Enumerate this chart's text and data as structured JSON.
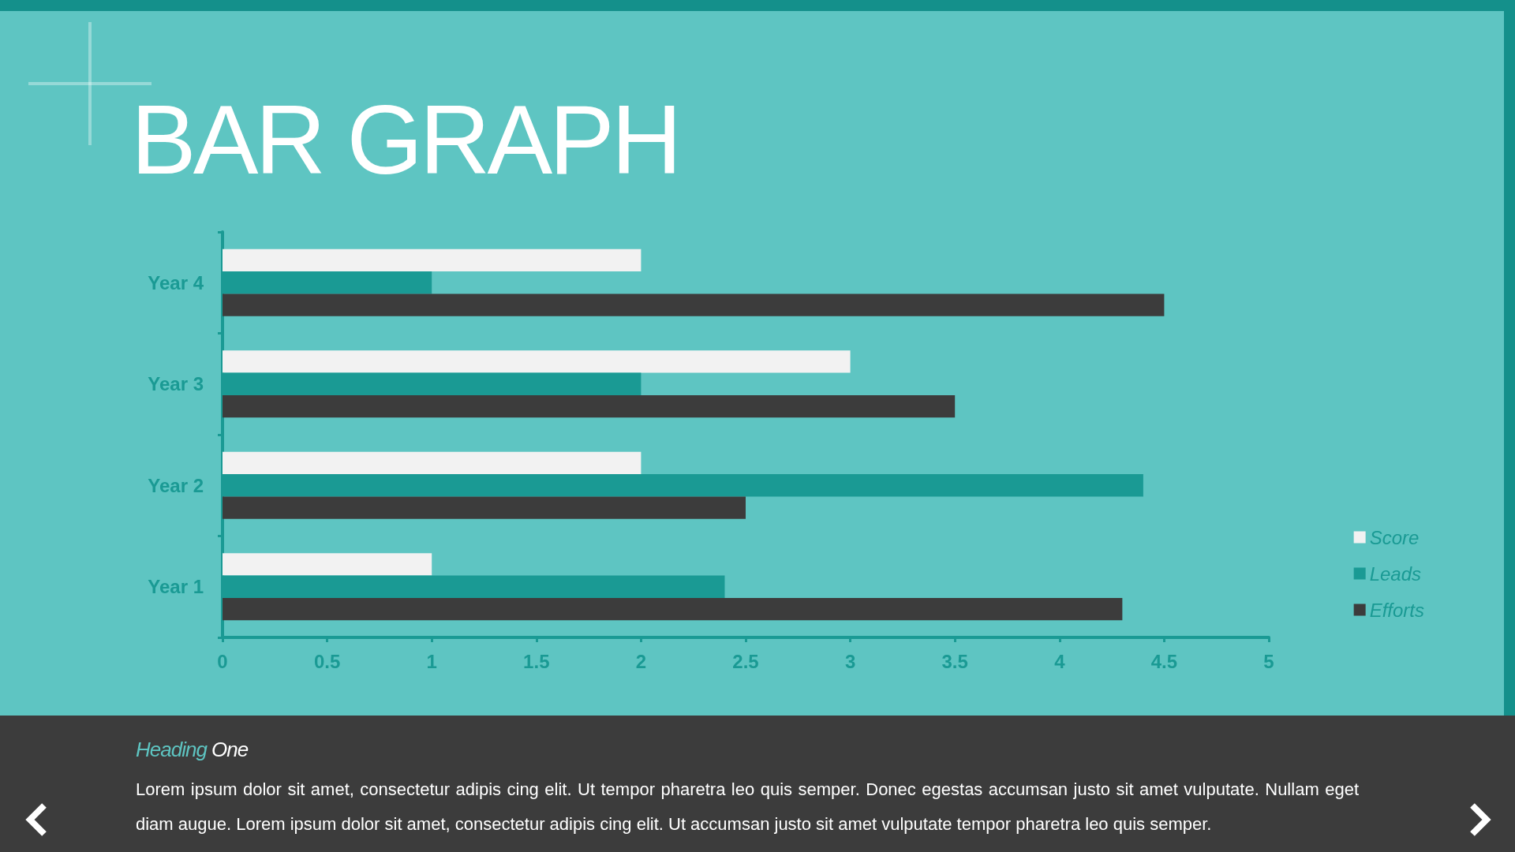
{
  "chart_data": {
    "type": "bar",
    "orientation": "horizontal",
    "title": "BAR GRAPH",
    "categories": [
      "Year 4",
      "Year 3",
      "Year 2",
      "Year 1"
    ],
    "series": [
      {
        "name": "Score",
        "color": "#f2f2f2",
        "values": [
          2,
          3,
          2,
          1
        ]
      },
      {
        "name": "Leads",
        "color": "#1a9a94",
        "values": [
          1,
          2,
          4.4,
          2.4
        ]
      },
      {
        "name": "Efforts",
        "color": "#3c3c3c",
        "values": [
          4.5,
          3.5,
          2.5,
          4.3
        ]
      }
    ],
    "xlim": [
      0,
      5
    ],
    "xticks": [
      0,
      0.5,
      1,
      1.5,
      2,
      2.5,
      3,
      3.5,
      4,
      4.5,
      5
    ],
    "grid": false,
    "legend": "bottom right",
    "annotations": [
      "Heading One",
      "Lorem ipsum dolor sit amet, consectetur adipis cing elit. Ut tempor pharetra leo quis semper. Donec egestas accumsan justo sit amet vulputate. Nullam eget diam augue. Lorem ipsum dolor sit amet, consectetur adipis cing elit. Ut accumsan justo sit amet vulputate tempor pharetra leo quis semper."
    ]
  }
}
